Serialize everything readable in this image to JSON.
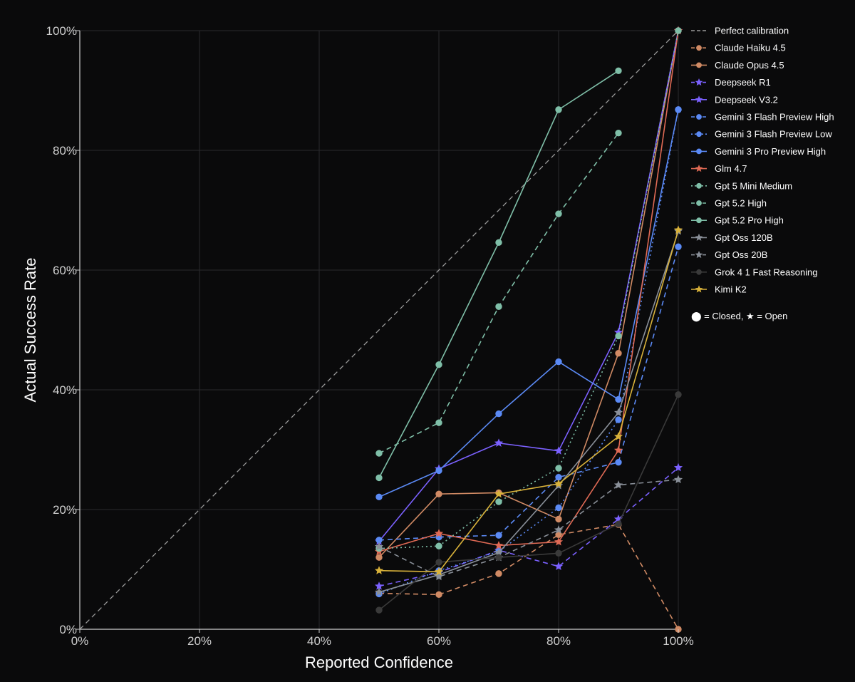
{
  "chart_data": {
    "type": "line",
    "title": "",
    "xlabel": "Reported Confidence",
    "ylabel": "Actual Success Rate",
    "xlim": [
      0,
      100
    ],
    "ylim": [
      0,
      100
    ],
    "x_ticks": [
      0,
      20,
      40,
      60,
      80,
      100
    ],
    "y_ticks": [
      0,
      20,
      40,
      60,
      80,
      100
    ],
    "x_tick_labels": [
      "0%",
      "20%",
      "40%",
      "60%",
      "80%",
      "100%"
    ],
    "y_tick_labels": [
      "0%",
      "20%",
      "40%",
      "60%",
      "80%",
      "100%"
    ],
    "grid": true,
    "legend_position": "top-right",
    "legend_note": "⬤ = Closed, ★ = Open",
    "series": [
      {
        "name": "Perfect calibration",
        "color": "#9a9a9a",
        "dash": "dashed",
        "marker": "none",
        "x": [
          0,
          100
        ],
        "y": [
          0,
          100
        ]
      },
      {
        "name": "Claude Haiku 4.5",
        "color": "#d08a64",
        "dash": "dashed",
        "marker": "circle",
        "x": [
          50,
          60,
          70,
          80,
          90,
          100
        ],
        "y": [
          6,
          5.8,
          9.3,
          15.8,
          17.5,
          0
        ]
      },
      {
        "name": "Claude Opus 4.5",
        "color": "#d08a64",
        "dash": "solid",
        "marker": "circle",
        "x": [
          50,
          60,
          70,
          80,
          90,
          100
        ],
        "y": [
          12,
          22.6,
          22.8,
          18.4,
          46.1,
          100
        ]
      },
      {
        "name": "Deepseek R1",
        "color": "#7b61ff",
        "dash": "dashed",
        "marker": "star",
        "x": [
          50,
          60,
          70,
          80,
          90,
          100
        ],
        "y": [
          7.2,
          9.5,
          13.2,
          10.5,
          18.4,
          27
        ]
      },
      {
        "name": "Deepseek V3.2",
        "color": "#7b61ff",
        "dash": "solid",
        "marker": "star",
        "x": [
          50,
          60,
          70,
          80,
          90,
          100
        ],
        "y": [
          14.7,
          26.8,
          31.1,
          29.8,
          49.6,
          100
        ]
      },
      {
        "name": "Gemini 3 Flash Preview High",
        "color": "#5b8af5",
        "dash": "dashed",
        "marker": "circle",
        "x": [
          50,
          60,
          70,
          80,
          90,
          100
        ],
        "y": [
          14.9,
          15.4,
          15.7,
          25.4,
          27.9,
          63.9
        ]
      },
      {
        "name": "Gemini 3 Flash Preview Low",
        "color": "#5b8af5",
        "dash": "dotted",
        "marker": "circle",
        "x": [
          50,
          60,
          70,
          80,
          90,
          100
        ],
        "y": [
          5.9,
          9.8,
          13,
          20.3,
          35,
          86.8
        ]
      },
      {
        "name": "Gemini 3 Pro Preview High",
        "color": "#5b8af5",
        "dash": "solid",
        "marker": "circle",
        "x": [
          50,
          60,
          70,
          80,
          90,
          100
        ],
        "y": [
          22.1,
          26.5,
          36,
          44.7,
          38.4,
          86.8
        ]
      },
      {
        "name": "Glm 4.7",
        "color": "#e06a55",
        "dash": "solid",
        "marker": "star",
        "x": [
          50,
          60,
          70,
          80,
          90,
          100
        ],
        "y": [
          13,
          16,
          14,
          14.6,
          29.9,
          100
        ]
      },
      {
        "name": "Gpt 5 Mini Medium",
        "color": "#7fbfa8",
        "dash": "dotted",
        "marker": "circle",
        "x": [
          50,
          60,
          70,
          80,
          90,
          100
        ],
        "y": [
          13.5,
          13.9,
          21.3,
          26.9,
          49,
          100
        ]
      },
      {
        "name": "Gpt 5.2 High",
        "color": "#7fbfa8",
        "dash": "dashed",
        "marker": "circle",
        "x": [
          50,
          60,
          70,
          80,
          90
        ],
        "y": [
          29.4,
          34.5,
          53.9,
          69.4,
          82.9
        ]
      },
      {
        "name": "Gpt 5.2 Pro High",
        "color": "#7fbfa8",
        "dash": "solid",
        "marker": "circle",
        "x": [
          50,
          60,
          70,
          80,
          90
        ],
        "y": [
          25.3,
          44.2,
          64.6,
          86.8,
          93.3
        ]
      },
      {
        "name": "Gpt Oss 120B",
        "color": "#8a9099",
        "dash": "solid",
        "marker": "star",
        "x": [
          50,
          60,
          70,
          80,
          90,
          100
        ],
        "y": [
          6.2,
          9.1,
          12.8,
          24,
          36.2,
          66.5
        ]
      },
      {
        "name": "Gpt Oss 20B",
        "color": "#8a9099",
        "dash": "dashed",
        "marker": "star",
        "x": [
          50,
          60,
          70,
          80,
          90,
          100
        ],
        "y": [
          13.8,
          8.8,
          12,
          16.6,
          24.1,
          25
        ]
      },
      {
        "name": "Grok 4 1 Fast Reasoning",
        "color": "#3a3a3a",
        "dash": "solid",
        "marker": "circle",
        "x": [
          50,
          60,
          70,
          80,
          90,
          100
        ],
        "y": [
          3.2,
          11.2,
          12,
          12.7,
          17.6,
          39.2
        ]
      },
      {
        "name": "Kimi K2",
        "color": "#d9b23a",
        "dash": "solid",
        "marker": "star",
        "x": [
          50,
          60,
          70,
          80,
          90,
          100
        ],
        "y": [
          9.8,
          9.6,
          22.6,
          24.3,
          32.2,
          66.7
        ]
      }
    ]
  }
}
